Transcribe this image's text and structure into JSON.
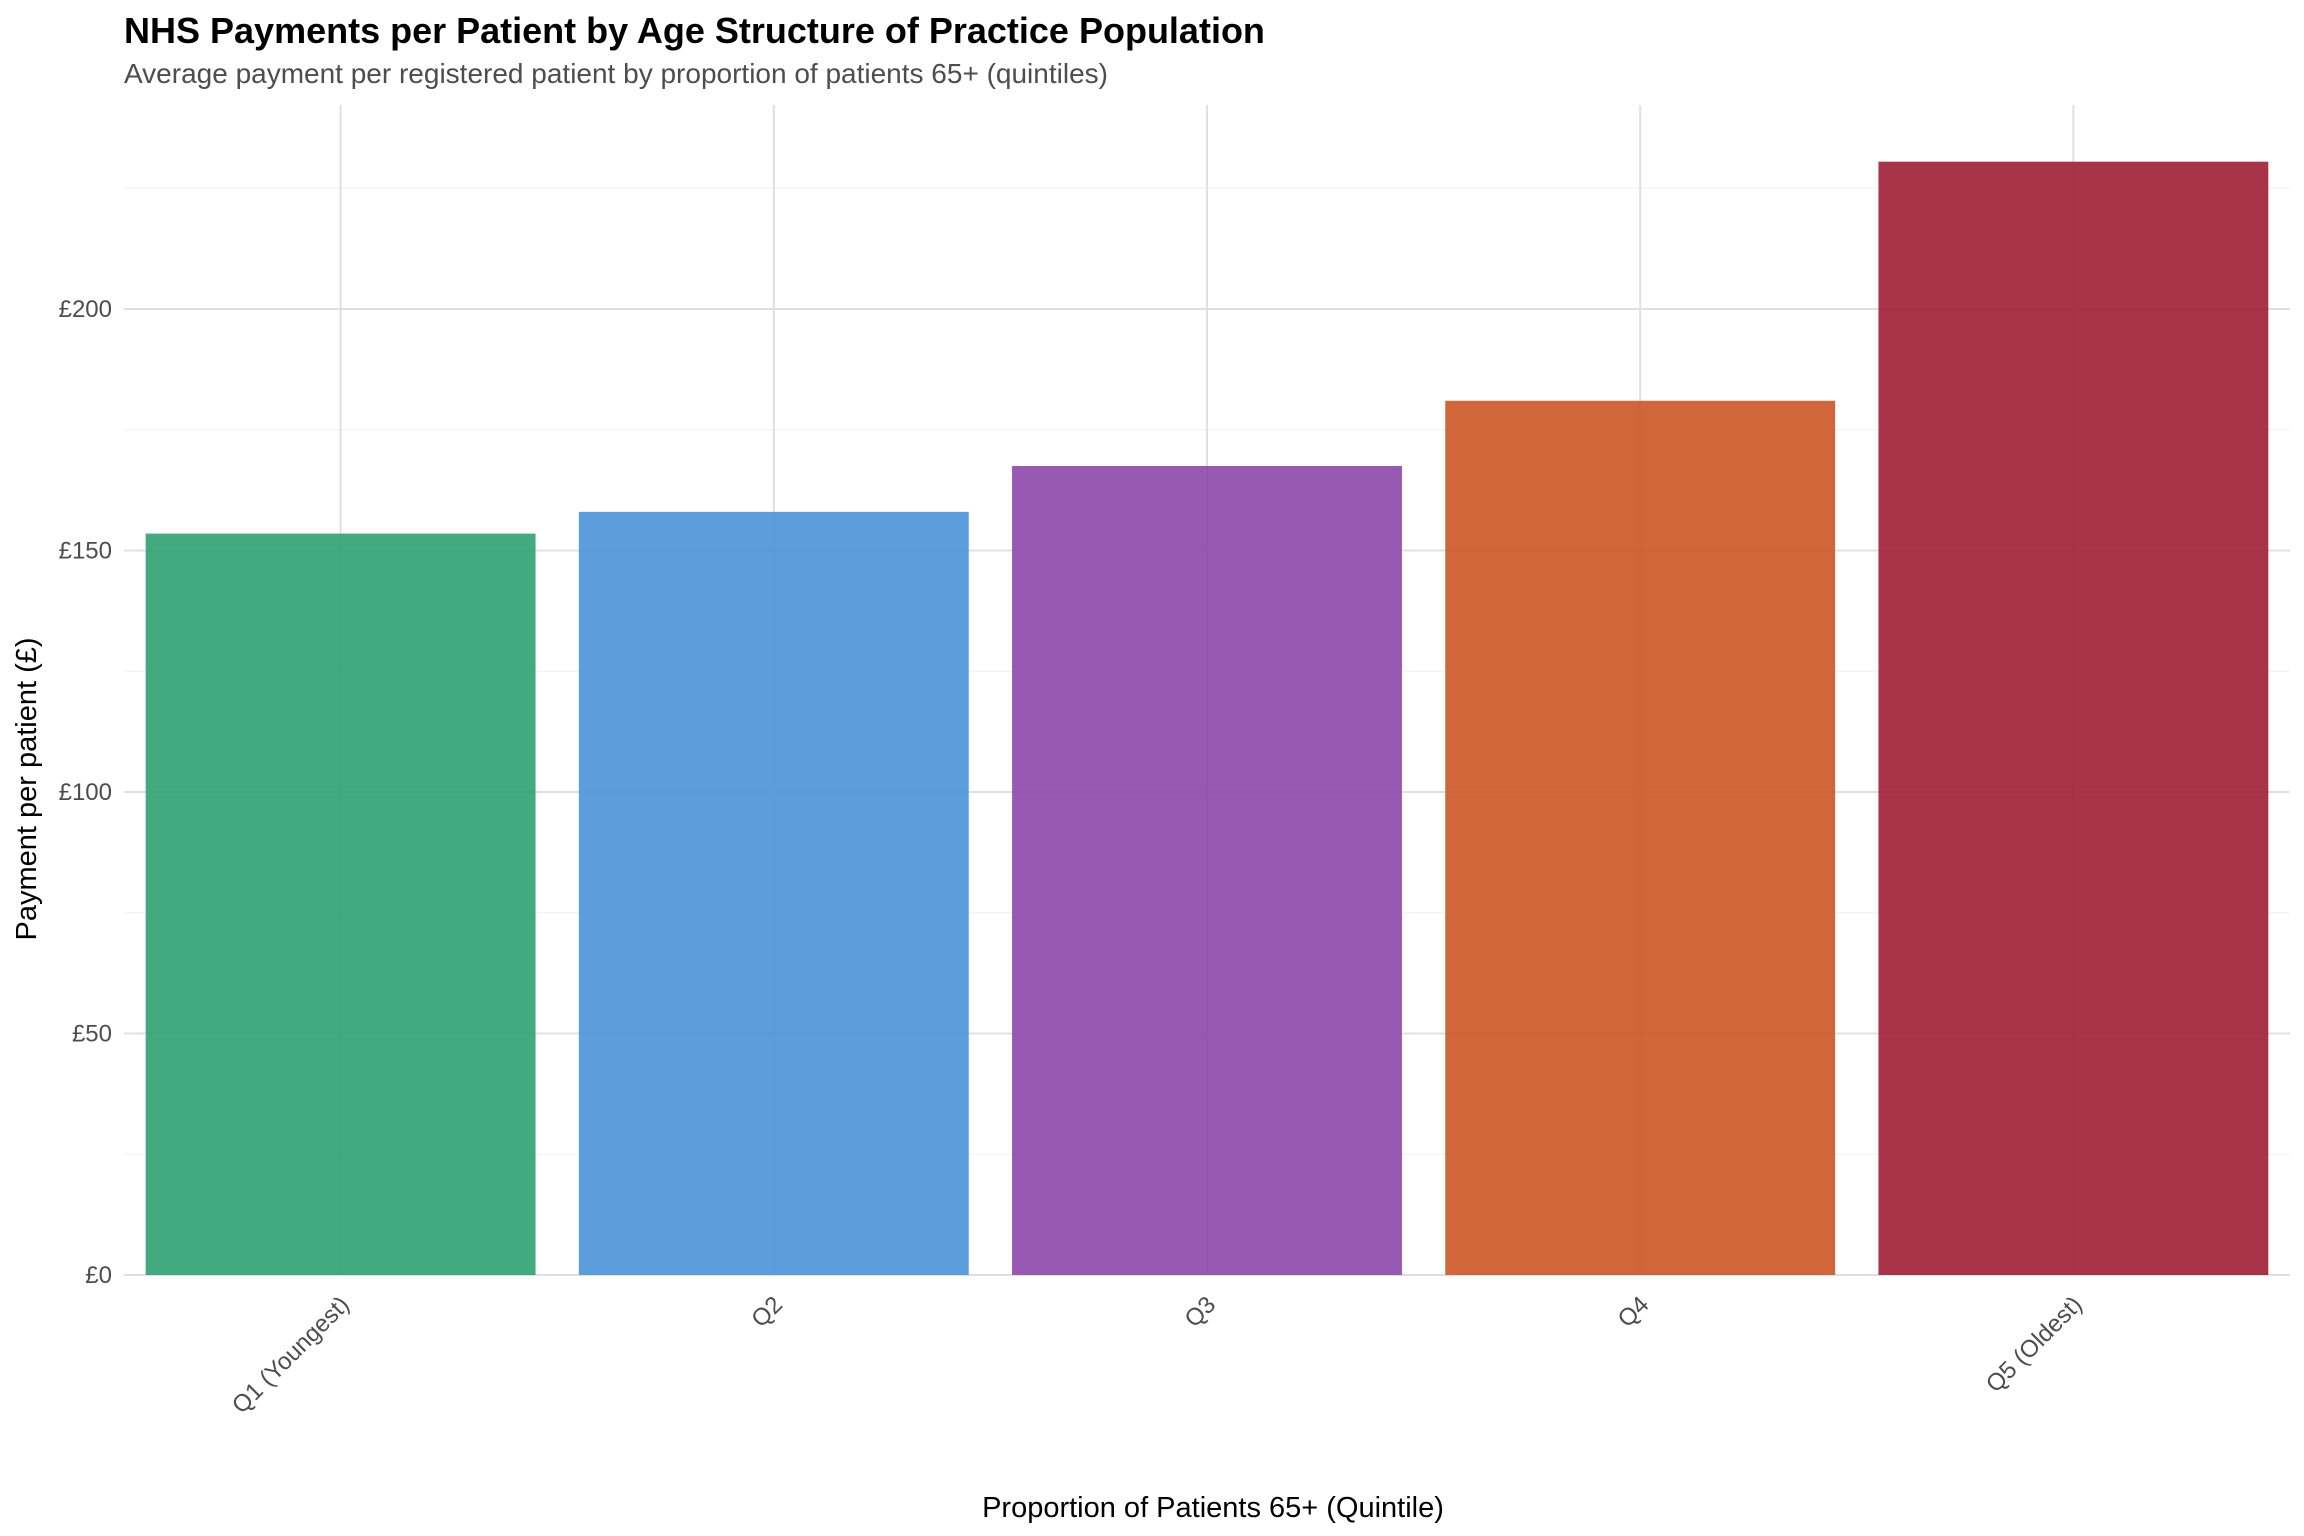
{
  "chart_data": {
    "type": "bar",
    "title": "NHS Payments per Patient by Age Structure of Practice Population",
    "subtitle": "Average payment per registered patient by proportion of patients 65+ (quintiles)",
    "xlabel": "Proportion of Patients 65+ (Quintile)",
    "ylabel": "Payment per patient (£)",
    "categories": [
      "Q1 (Youngest)",
      "Q2",
      "Q3",
      "Q4",
      "Q5 (Oldest)"
    ],
    "values": [
      153.5,
      158,
      167.5,
      181,
      230.5
    ],
    "colors": [
      "#2fa071",
      "#4a93d8",
      "#8c47aa",
      "#cc5525",
      "#a01e36"
    ],
    "ylim": [
      0,
      242
    ],
    "yticks": [
      0,
      50,
      100,
      150,
      200
    ],
    "ytick_labels": [
      "£0",
      "£50",
      "£100",
      "£150",
      "£200"
    ],
    "grid": true,
    "legend": "none"
  }
}
